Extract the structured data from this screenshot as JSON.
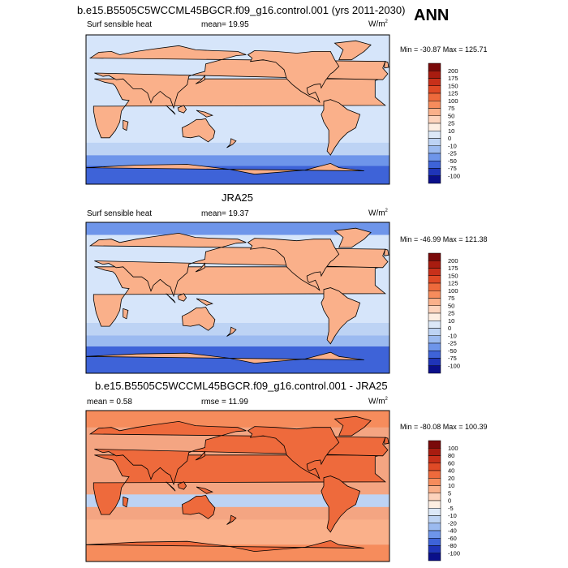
{
  "season": "ANN",
  "panels": [
    {
      "title": "b.e15.B5505C5WCCML45BGCR.f09_g16.control.001 (yrs 2011-2030)",
      "left_label": "Surf sensible heat",
      "center_label": "mean=  19.95",
      "units": "W/m",
      "units_sup": "2",
      "minmax": "Min = -30.87 Max = 125.71",
      "colorbar_levels": [
        "200",
        "175",
        "150",
        "125",
        "100",
        "75",
        "50",
        "25",
        "10",
        "0",
        "-10",
        "-25",
        "-50",
        "-75",
        "-100"
      ],
      "colorbar_colors": [
        "#7a0a0a",
        "#a81c10",
        "#c8301a",
        "#e04a26",
        "#ee6a3c",
        "#f68c5c",
        "#fab08a",
        "#fdd3bc",
        "#fdeee2",
        "#dce8f8",
        "#bdd3f4",
        "#9bbaf0",
        "#6e95ea",
        "#3e63d8",
        "#1f34b8",
        "#0a0f8a"
      ],
      "ocean_color": "#d6e5fa"
    },
    {
      "title": "JRA25",
      "left_label": "Surf sensible heat",
      "center_label": "mean=  19.37",
      "units": "W/m",
      "units_sup": "2",
      "minmax": "Min = -46.99 Max = 121.38",
      "colorbar_levels": [
        "200",
        "175",
        "150",
        "125",
        "100",
        "75",
        "50",
        "25",
        "10",
        "0",
        "-10",
        "-25",
        "-50",
        "-75",
        "-100"
      ],
      "colorbar_colors": [
        "#7a0a0a",
        "#a81c10",
        "#c8301a",
        "#e04a26",
        "#ee6a3c",
        "#f68c5c",
        "#fab08a",
        "#fdd3bc",
        "#fdeee2",
        "#dce8f8",
        "#bdd3f4",
        "#9bbaf0",
        "#6e95ea",
        "#3e63d8",
        "#1f34b8",
        "#0a0f8a"
      ],
      "ocean_color": "#d6e5fa"
    },
    {
      "title": "b.e15.B5505C5WCCML45BGCR.f09_g16.control.001 - JRA25",
      "left_label": "mean =   0.58",
      "center_label": "rmse =  11.99",
      "units": "W/m",
      "units_sup": "2",
      "minmax": "Min = -80.08 Max = 100.39",
      "colorbar_levels": [
        "100",
        "80",
        "60",
        "40",
        "20",
        "10",
        "5",
        "0",
        "-5",
        "-10",
        "-20",
        "-40",
        "-60",
        "-80",
        "-100"
      ],
      "colorbar_colors": [
        "#7a0a0a",
        "#a81c10",
        "#c8301a",
        "#e04a26",
        "#ee6a3c",
        "#f68c5c",
        "#fab08a",
        "#fdd3bc",
        "#fdeee2",
        "#dce8f8",
        "#bdd3f4",
        "#9bbaf0",
        "#6e95ea",
        "#3e63d8",
        "#1f34b8",
        "#0a0f8a"
      ],
      "ocean_color": "#f4a582"
    }
  ],
  "chart_data": [
    {
      "type": "heatmap",
      "title": "b.e15.B5505C5WCCML45BGCR.f09_g16.control.001 (yrs 2011-2030)",
      "variable": "Surf sensible heat",
      "units": "W/m2",
      "mean": 19.95,
      "min": -30.87,
      "max": 125.71,
      "contour_levels": [
        -100,
        -75,
        -50,
        -25,
        -10,
        0,
        10,
        25,
        50,
        75,
        100,
        125,
        150,
        175,
        200
      ]
    },
    {
      "type": "heatmap",
      "title": "JRA25",
      "variable": "Surf sensible heat",
      "units": "W/m2",
      "mean": 19.37,
      "min": -46.99,
      "max": 121.38,
      "contour_levels": [
        -100,
        -75,
        -50,
        -25,
        -10,
        0,
        10,
        25,
        50,
        75,
        100,
        125,
        150,
        175,
        200
      ]
    },
    {
      "type": "heatmap",
      "title": "b.e15.B5505C5WCCML45BGCR.f09_g16.control.001 - JRA25",
      "units": "W/m2",
      "mean": 0.58,
      "rmse": 11.99,
      "min": -80.08,
      "max": 100.39,
      "contour_levels": [
        -100,
        -80,
        -60,
        -40,
        -20,
        -10,
        -5,
        0,
        5,
        10,
        20,
        40,
        60,
        80,
        100
      ]
    }
  ]
}
